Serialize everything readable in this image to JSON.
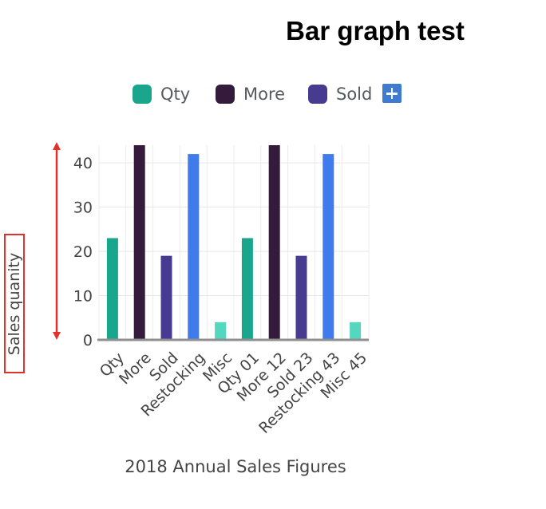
{
  "chart_data": {
    "type": "bar",
    "title": "Bar graph test",
    "xlabel": "2018 Annual Sales Figures",
    "ylabel": "Sales quanity",
    "ylim": [
      0,
      44
    ],
    "yticks": [
      "0",
      "10",
      "20",
      "30",
      "40"
    ],
    "grid": true,
    "legend_position": "top",
    "categories": [
      "Qty",
      "More",
      "Sold",
      "Restocking",
      "Misc",
      "Qty 01",
      "More 12",
      "Sold 23",
      "Restocking 43",
      "Misc 45"
    ],
    "values": [
      23,
      44,
      19,
      42,
      4,
      23,
      44,
      19,
      42,
      4
    ],
    "bar_colors": [
      "#1aa68c",
      "#341b3c",
      "#463a91",
      "#3f7bea",
      "#55d6bf",
      "#1aa68c",
      "#341b3c",
      "#463a91",
      "#3f7bea",
      "#55d6bf"
    ],
    "legend": [
      {
        "name": "Qty",
        "color": "#1aa68c"
      },
      {
        "name": "More",
        "color": "#341b3c"
      },
      {
        "name": "Sold",
        "color": "#463a91"
      }
    ]
  },
  "legend_more_icon": "plus-icon",
  "arrow_color": "#e0312b"
}
